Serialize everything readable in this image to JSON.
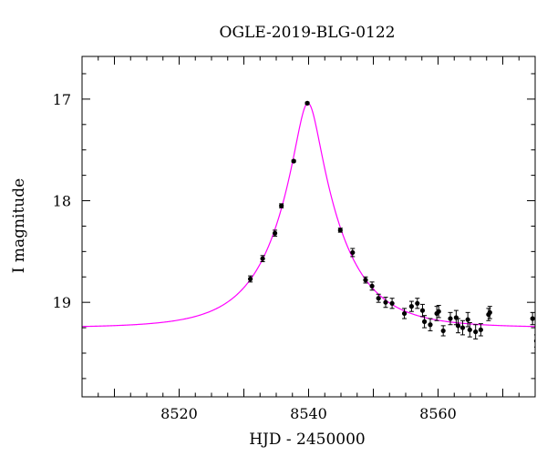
{
  "chart_data": {
    "type": "scatter",
    "title": "OGLE-2019-BLG-0122",
    "xlabel": "HJD - 2450000",
    "ylabel": "I magnitude",
    "xlim": [
      8505,
      8575
    ],
    "ylim": [
      19.93,
      16.58
    ],
    "y_inverted": true,
    "x_ticks": [
      8520,
      8540,
      8560
    ],
    "y_ticks": [
      17,
      18,
      19
    ],
    "grid": false,
    "colors": {
      "points": "#000000",
      "model": "#ff00ff"
    },
    "series": [
      {
        "kind": "points_with_errorbars",
        "x": [
          8531.0,
          8532.9,
          8534.8,
          8535.8,
          8537.7,
          8539.8,
          8544.9,
          8546.8,
          8548.8,
          8549.8,
          8550.8,
          8551.9,
          8552.9,
          8554.8,
          8555.9,
          8556.8,
          8557.6,
          8557.9,
          8558.8,
          8559.8,
          8560.1,
          8560.8,
          8561.9,
          8562.8,
          8563.1,
          8563.8,
          8564.6,
          8564.9,
          8565.8,
          8566.6,
          8567.8,
          8568.0,
          8574.6,
          8575.2
        ],
        "y": [
          18.77,
          18.57,
          18.32,
          18.05,
          17.61,
          17.04,
          18.29,
          18.51,
          18.78,
          18.84,
          18.96,
          19.0,
          19.01,
          19.11,
          19.04,
          19.01,
          19.08,
          19.19,
          19.22,
          19.11,
          19.09,
          19.28,
          19.16,
          19.15,
          19.23,
          19.25,
          19.17,
          19.27,
          19.29,
          19.27,
          19.12,
          19.1,
          19.16,
          19.38
        ],
        "yerr": [
          0.03,
          0.03,
          0.03,
          0.02,
          0.01,
          0.01,
          0.02,
          0.04,
          0.03,
          0.04,
          0.04,
          0.05,
          0.05,
          0.05,
          0.05,
          0.05,
          0.06,
          0.06,
          0.06,
          0.07,
          0.06,
          0.05,
          0.06,
          0.07,
          0.07,
          0.07,
          0.07,
          0.07,
          0.07,
          0.06,
          0.06,
          0.06,
          0.06,
          0.06
        ]
      },
      {
        "kind": "model_curve",
        "model": "PSPL",
        "t0": 8539.9,
        "u0": 0.2,
        "tE": 9.0,
        "baseline_mag": 19.25,
        "peak_mag": 17.04
      }
    ]
  }
}
